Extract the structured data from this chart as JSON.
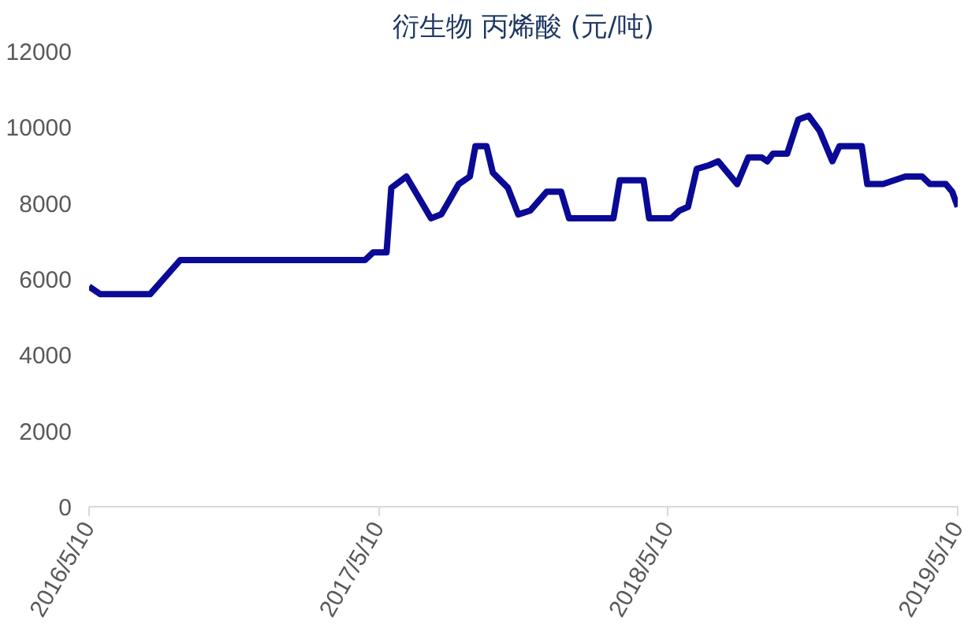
{
  "chart_data": {
    "type": "line",
    "title": "衍生物 丙烯酸 (元/吨)",
    "x": [
      "2016-05-10",
      "2016-05-24",
      "2016-07-26",
      "2016-09-02",
      "2017-04-23",
      "2017-05-03",
      "2017-05-20",
      "2017-05-26",
      "2017-06-14",
      "2017-07-15",
      "2017-07-28",
      "2017-08-19",
      "2017-09-02",
      "2017-09-09",
      "2017-09-23",
      "2017-10-01",
      "2017-10-20",
      "2017-11-02",
      "2017-11-17",
      "2017-12-08",
      "2017-12-26",
      "2018-01-05",
      "2018-01-19",
      "2018-03-02",
      "2018-03-10",
      "2018-04-09",
      "2018-04-16",
      "2018-05-14",
      "2018-05-24",
      "2018-06-04",
      "2018-06-15",
      "2018-07-01",
      "2018-07-12",
      "2018-08-05",
      "2018-08-19",
      "2018-09-05",
      "2018-09-12",
      "2018-09-19",
      "2018-10-07",
      "2018-10-21",
      "2018-11-03",
      "2018-11-17",
      "2018-12-03",
      "2018-12-12",
      "2019-01-09",
      "2019-01-16",
      "2019-02-05",
      "2019-03-05",
      "2019-03-26",
      "2019-04-05",
      "2019-04-25",
      "2019-05-03",
      "2019-05-10"
    ],
    "series": [
      {
        "color": "#0a0a96",
        "values": [
          5800,
          5600,
          5600,
          6500,
          6500,
          6700,
          6700,
          8400,
          8700,
          7600,
          7700,
          8500,
          8700,
          9500,
          9500,
          8800,
          8400,
          7700,
          7800,
          8300,
          8300,
          7600,
          7600,
          7600,
          8600,
          8600,
          7600,
          7600,
          7800,
          7900,
          8900,
          9000,
          9100,
          8500,
          9200,
          9200,
          9100,
          9300,
          9300,
          10200,
          10300,
          9900,
          9100,
          9500,
          9500,
          8500,
          8500,
          8700,
          8700,
          8500,
          8500,
          8300,
          7900
        ]
      }
    ],
    "xlim": [
      "2016-05-10",
      "2019-05-10"
    ],
    "xticks": [
      {
        "value": "2016-05-10",
        "label": "2016/5/10"
      },
      {
        "value": "2017-05-10",
        "label": "2017/5/10"
      },
      {
        "value": "2018-05-10",
        "label": "2018/5/10"
      },
      {
        "value": "2019-05-10",
        "label": "2019/5/10"
      }
    ],
    "ylim": [
      0,
      12000
    ],
    "yticks": [
      0,
      2000,
      4000,
      6000,
      8000,
      10000,
      12000
    ],
    "grid": false,
    "line_style": "solid",
    "marker": "none"
  }
}
